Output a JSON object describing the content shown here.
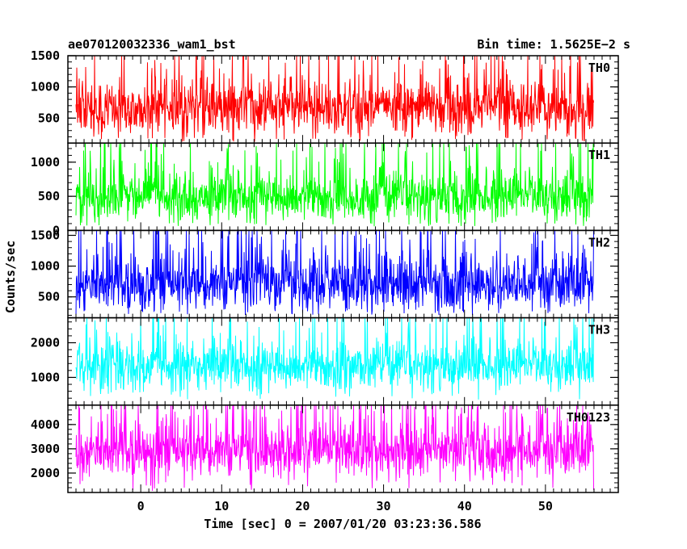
{
  "header": {
    "left_title": "ae070120032336_wam1_bst",
    "right_title": "Bin time: 1.5625E−2 s"
  },
  "chart_data": {
    "type": "line",
    "title": "ae070120032336_wam1_bst",
    "subtitle": "Bin time: 1.5625E−2 s",
    "xlabel": "Time [sec] 0 = 2007/01/20 03:23:36.586",
    "ylabel": "Counts/sec",
    "xlim": [
      -9,
      59
    ],
    "x_data_range": [
      -8,
      56
    ],
    "xticks": [
      0,
      10,
      20,
      30,
      40,
      50
    ],
    "grid": false,
    "panels": [
      {
        "name": "TH0",
        "color": "#ff0000",
        "ylim": [
          100,
          1500
        ],
        "yticks": [
          500,
          1000,
          1500
        ],
        "baseline": 120,
        "mean": 650,
        "spread": 230,
        "peak": 1500
      },
      {
        "name": "TH1",
        "color": "#00ff00",
        "ylim": [
          0,
          1280
        ],
        "yticks": [
          0,
          500,
          1000
        ],
        "baseline": 60,
        "mean": 480,
        "spread": 190,
        "peak": 1280
      },
      {
        "name": "TH2",
        "color": "#0000ff",
        "ylim": [
          160,
          1580
        ],
        "yticks": [
          500,
          1000,
          1500
        ],
        "baseline": 200,
        "mean": 700,
        "spread": 240,
        "peak": 1580
      },
      {
        "name": "TH3",
        "color": "#00ffff",
        "ylim": [
          200,
          2720
        ],
        "yticks": [
          1000,
          2000
        ],
        "baseline": 350,
        "mean": 1300,
        "spread": 360,
        "peak": 2720
      },
      {
        "name": "TH0123",
        "color": "#ff00ff",
        "ylim": [
          1200,
          4800
        ],
        "yticks": [
          2000,
          3000,
          4000
        ],
        "baseline": 1250,
        "mean": 2900,
        "spread": 600,
        "peak": 4800
      }
    ]
  }
}
